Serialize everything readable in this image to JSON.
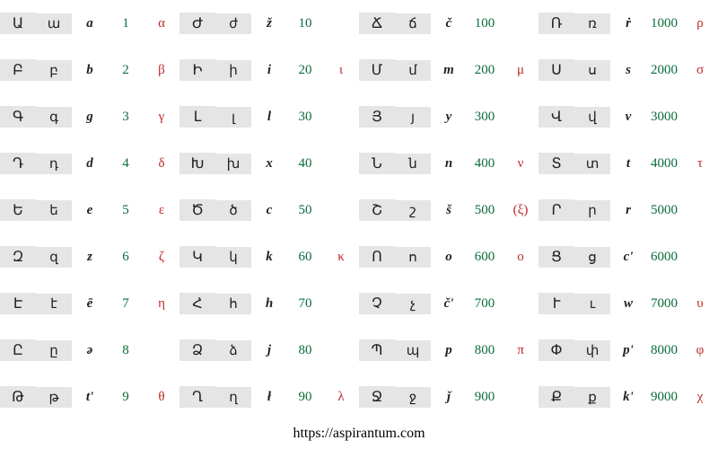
{
  "footer": "https://aspirantum.com",
  "colors": {
    "shade_bg": "#e5e5e5",
    "num_color": "#0a6b3a",
    "greek_color": "#c02828",
    "text_color": "#222222",
    "background": "#ffffff"
  },
  "typography": {
    "font_family": "Georgia, 'Times New Roman', serif",
    "cell_fontsize": 15,
    "footer_fontsize": 16
  },
  "layout": {
    "blocks": 4,
    "rows_per_block": 9,
    "cols_per_block": 5,
    "shaded_cols": [
      0,
      1
    ]
  },
  "blocks": [
    [
      {
        "u": "Ա",
        "l": "ա",
        "t": "a",
        "n": "1",
        "g": "α"
      },
      {
        "u": "Բ",
        "l": "բ",
        "t": "b",
        "n": "2",
        "g": "β"
      },
      {
        "u": "Գ",
        "l": "գ",
        "t": "g",
        "n": "3",
        "g": "γ"
      },
      {
        "u": "Դ",
        "l": "դ",
        "t": "d",
        "n": "4",
        "g": "δ"
      },
      {
        "u": "Ե",
        "l": "ե",
        "t": "e",
        "n": "5",
        "g": "ε"
      },
      {
        "u": "Զ",
        "l": "զ",
        "t": "z",
        "n": "6",
        "g": "ζ"
      },
      {
        "u": "Է",
        "l": "է",
        "t": "ē",
        "n": "7",
        "g": "η"
      },
      {
        "u": "Ը",
        "l": "ը",
        "t": "ə",
        "n": "8",
        "g": ""
      },
      {
        "u": "Թ",
        "l": "թ",
        "t": "t'",
        "n": "9",
        "g": "θ"
      }
    ],
    [
      {
        "u": "Ժ",
        "l": "ժ",
        "t": "ž",
        "n": "10",
        "g": ""
      },
      {
        "u": "Ի",
        "l": "ի",
        "t": "i",
        "n": "20",
        "g": "ι"
      },
      {
        "u": "Լ",
        "l": "լ",
        "t": "l",
        "n": "30",
        "g": ""
      },
      {
        "u": "Խ",
        "l": "խ",
        "t": "x",
        "n": "40",
        "g": ""
      },
      {
        "u": "Ծ",
        "l": "ծ",
        "t": "c",
        "n": "50",
        "g": ""
      },
      {
        "u": "Կ",
        "l": "կ",
        "t": "k",
        "n": "60",
        "g": "κ"
      },
      {
        "u": "Հ",
        "l": "հ",
        "t": "h",
        "n": "70",
        "g": ""
      },
      {
        "u": "Ձ",
        "l": "ձ",
        "t": "j",
        "n": "80",
        "g": ""
      },
      {
        "u": "Ղ",
        "l": "ղ",
        "t": "ł",
        "n": "90",
        "g": "λ"
      }
    ],
    [
      {
        "u": "Ճ",
        "l": "ճ",
        "t": "č",
        "n": "100",
        "g": ""
      },
      {
        "u": "Մ",
        "l": "մ",
        "t": "m",
        "n": "200",
        "g": "μ"
      },
      {
        "u": "Յ",
        "l": "յ",
        "t": "y",
        "n": "300",
        "g": ""
      },
      {
        "u": "Ն",
        "l": "ն",
        "t": "n",
        "n": "400",
        "g": "ν"
      },
      {
        "u": "Շ",
        "l": "շ",
        "t": "š",
        "n": "500",
        "g": "(ξ)"
      },
      {
        "u": "Ո",
        "l": "ո",
        "t": "o",
        "n": "600",
        "g": "ο"
      },
      {
        "u": "Չ",
        "l": "չ",
        "t": "č'",
        "n": "700",
        "g": ""
      },
      {
        "u": "Պ",
        "l": "պ",
        "t": "p",
        "n": "800",
        "g": "π"
      },
      {
        "u": "Ջ",
        "l": "ջ",
        "t": "ǰ",
        "n": "900",
        "g": ""
      }
    ],
    [
      {
        "u": "Ռ",
        "l": "ռ",
        "t": "ṙ",
        "n": "1000",
        "g": "ρ"
      },
      {
        "u": "Ս",
        "l": "ս",
        "t": "s",
        "n": "2000",
        "g": "σ"
      },
      {
        "u": "Վ",
        "l": "վ",
        "t": "v",
        "n": "3000",
        "g": ""
      },
      {
        "u": "Տ",
        "l": "տ",
        "t": "t",
        "n": "4000",
        "g": "τ"
      },
      {
        "u": "Ր",
        "l": "ր",
        "t": "r",
        "n": "5000",
        "g": ""
      },
      {
        "u": "Ց",
        "l": "ց",
        "t": "c'",
        "n": "6000",
        "g": ""
      },
      {
        "u": "Ւ",
        "l": "ւ",
        "t": "w",
        "n": "7000",
        "g": "υ"
      },
      {
        "u": "Փ",
        "l": "փ",
        "t": "p'",
        "n": "8000",
        "g": "φ"
      },
      {
        "u": "Ք",
        "l": "ք",
        "t": "k'",
        "n": "9000",
        "g": "χ"
      }
    ]
  ]
}
